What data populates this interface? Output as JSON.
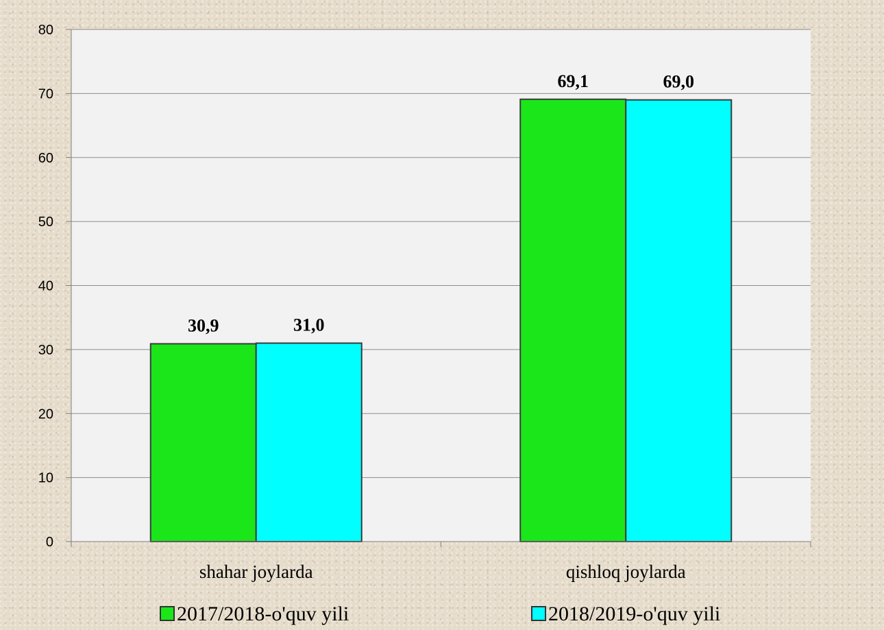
{
  "chart_data": {
    "type": "bar",
    "categories": [
      "shahar joylarda",
      "qishloq joylarda"
    ],
    "series": [
      {
        "name": "2017/2018-o'quv yili",
        "values": [
          30.9,
          69.1
        ],
        "labels": [
          "30,9",
          "69,1"
        ],
        "color": "#1ae61a"
      },
      {
        "name": "2018/2019-o'quv yili",
        "values": [
          31.0,
          69.0
        ],
        "labels": [
          "31,0",
          "69,0"
        ],
        "color": "#00ffff"
      }
    ],
    "ylim": [
      0,
      80
    ],
    "yticks": [
      "0",
      "10",
      "20",
      "30",
      "40",
      "50",
      "60",
      "70",
      "80"
    ],
    "grid": true,
    "legend_position": "bottom",
    "plot_background": "#f2f2f2"
  }
}
